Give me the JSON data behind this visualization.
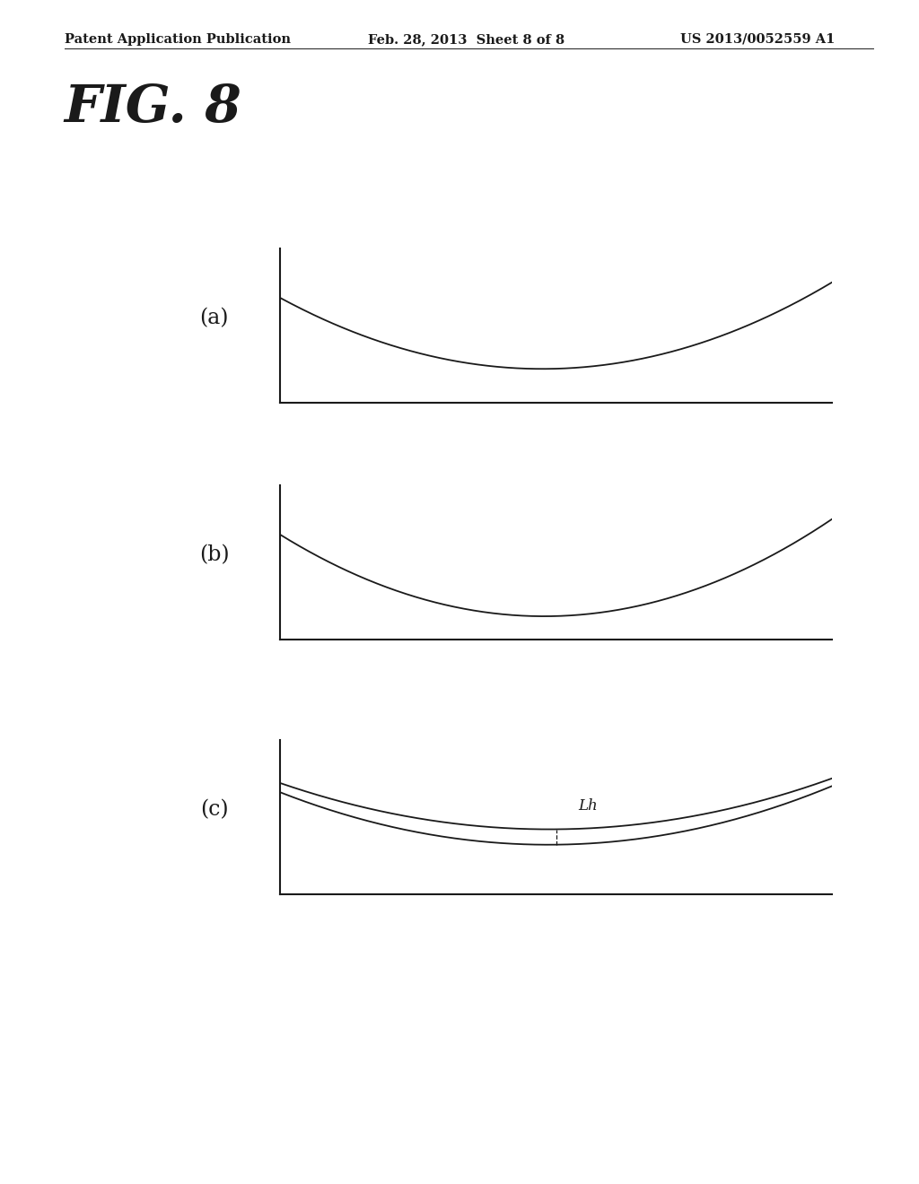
{
  "header_left": "Patent Application Publication",
  "header_center": "Feb. 28, 2013  Sheet 8 of 8",
  "header_right": "US 2013/0052559 A1",
  "fig_title": "FIG. 8",
  "panel_labels": [
    "(a)",
    "(b)",
    "(c)"
  ],
  "background_color": "#ffffff",
  "line_color": "#1a1a1a",
  "axis_color": "#1a1a1a",
  "header_fontsize": 10.5,
  "fig_title_fontsize": 42,
  "panel_label_fontsize": 17,
  "lh_label": "Lh",
  "lh_fontsize": 12
}
